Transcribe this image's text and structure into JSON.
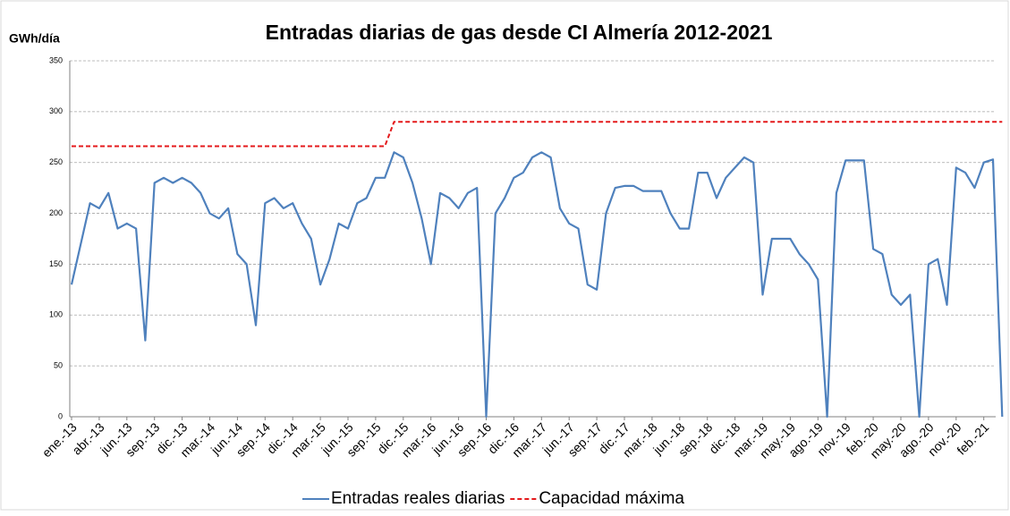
{
  "chart_data": {
    "type": "line",
    "title": "Entradas diarias de gas desde CI Almería 2012-2021",
    "y_label": "GWh/día",
    "categories": [
      "ene.-13",
      null,
      null,
      "abr.-13",
      null,
      null,
      "jun.-13",
      null,
      null,
      "sep.-13",
      null,
      null,
      "dic.-13",
      null,
      null,
      "mar.-14",
      null,
      null,
      "jun.-14",
      null,
      null,
      "sep.-14",
      null,
      null,
      "dic.-14",
      null,
      null,
      "mar.-15",
      null,
      null,
      "jun.-15",
      null,
      null,
      "sep.-15",
      null,
      null,
      "dic.-15",
      null,
      null,
      "mar.-16",
      null,
      null,
      "jun.-16",
      null,
      null,
      "sep.-16",
      null,
      null,
      "dic.-16",
      null,
      null,
      "mar.-17",
      null,
      null,
      "jun.-17",
      null,
      null,
      "sep.-17",
      null,
      null,
      "dic.-17",
      null,
      null,
      "mar.-18",
      null,
      null,
      "jun.-18",
      null,
      null,
      "sep.-18",
      null,
      null,
      "dic.-18",
      null,
      null,
      "mar.-19",
      null,
      null,
      "may.-19",
      null,
      null,
      "ago.-19",
      null,
      null,
      "nov.-19",
      null,
      null,
      "feb.-20",
      null,
      null,
      "may.-20",
      null,
      null,
      "ago.-20",
      null,
      null,
      "nov.-20",
      null,
      null,
      "feb.-21",
      null,
      null
    ],
    "series": [
      {
        "name": "Entradas reales diarias",
        "color": "#4f81bd",
        "dash": false,
        "values": [
          130,
          170,
          210,
          205,
          220,
          185,
          190,
          185,
          75,
          230,
          235,
          230,
          235,
          230,
          220,
          200,
          195,
          205,
          160,
          150,
          90,
          210,
          215,
          205,
          210,
          190,
          175,
          130,
          155,
          190,
          185,
          210,
          215,
          235,
          235,
          260,
          255,
          230,
          195,
          150,
          220,
          215,
          205,
          220,
          225,
          0,
          200,
          215,
          235,
          240,
          255,
          260,
          255,
          205,
          190,
          185,
          130,
          125,
          200,
          225,
          227,
          227,
          222,
          222,
          222,
          200,
          185,
          185,
          240,
          240,
          215,
          235,
          245,
          255,
          250,
          120,
          175,
          175,
          175,
          160,
          150,
          135,
          0,
          220,
          252,
          252,
          252,
          165,
          160,
          120,
          110,
          120,
          0,
          150,
          155,
          110,
          245,
          240,
          225,
          250,
          253,
          0
        ]
      },
      {
        "name": "Capacidad máxima",
        "color": "#e41a1c",
        "dash": true,
        "values": [
          266,
          266,
          266,
          266,
          266,
          266,
          266,
          266,
          266,
          266,
          266,
          266,
          266,
          266,
          266,
          266,
          266,
          266,
          266,
          266,
          266,
          266,
          266,
          266,
          266,
          266,
          266,
          266,
          266,
          266,
          266,
          266,
          266,
          266,
          266,
          290,
          290,
          290,
          290,
          290,
          290,
          290,
          290,
          290,
          290,
          290,
          290,
          290,
          290,
          290,
          290,
          290,
          290,
          290,
          290,
          290,
          290,
          290,
          290,
          290,
          290,
          290,
          290,
          290,
          290,
          290,
          290,
          290,
          290,
          290,
          290,
          290,
          290,
          290,
          290,
          290,
          290,
          290,
          290,
          290,
          290,
          290,
          290,
          290,
          290,
          290,
          290,
          290,
          290,
          290,
          290,
          290,
          290,
          290,
          290,
          290,
          290,
          290,
          290,
          290,
          290,
          290
        ]
      }
    ],
    "ylim": [
      0,
      350
    ],
    "yticks": [
      0,
      50,
      100,
      150,
      200,
      250,
      300,
      350
    ],
    "grid": true,
    "legend": "bottom"
  }
}
